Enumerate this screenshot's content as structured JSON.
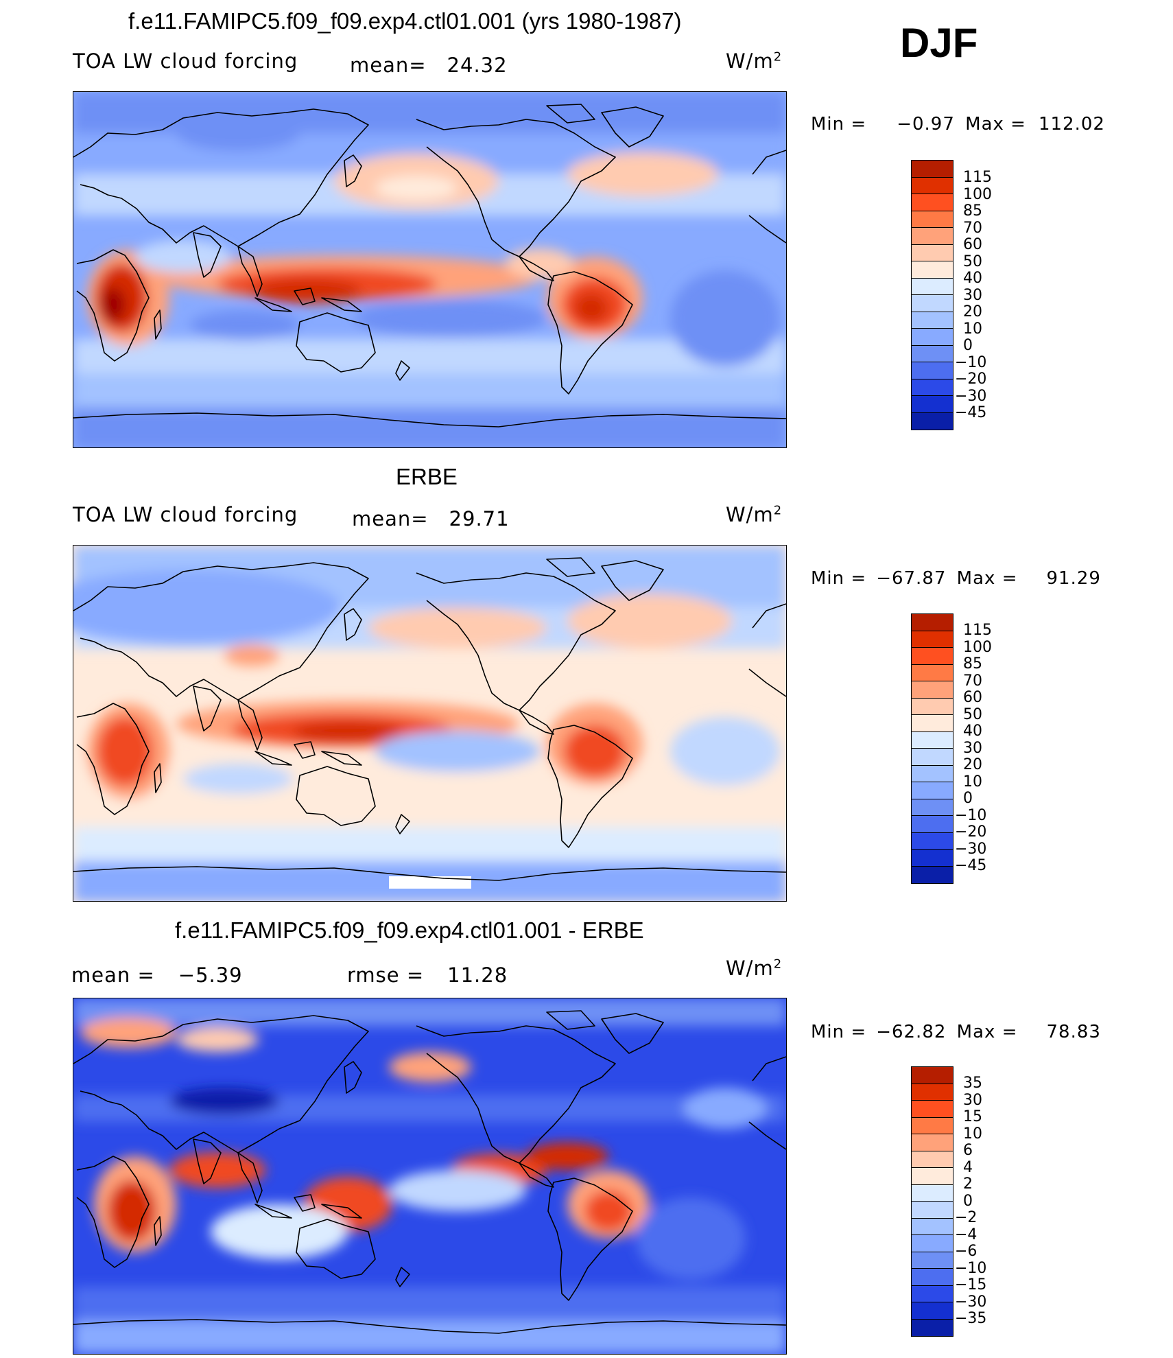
{
  "season": "DJF",
  "units": "W/m",
  "units_sup": "2",
  "palette": {
    "fields": [
      "#7f0000",
      "#b51e00",
      "#e03000",
      "#ff5020",
      "#ff7a45",
      "#ffa27a",
      "#ffcbb0",
      "#ffebdc",
      "#dcecff",
      "#c1d8ff",
      "#a3c2ff",
      "#88aaff",
      "#6e90f5",
      "#4d6ef0",
      "#2c4ae8",
      "#1430d0",
      "#0a1fa8",
      "#06117a"
    ]
  },
  "panels": [
    {
      "title": "f.e11.FAMIPC5.f09_f09.exp4.ctl01.001 (yrs 1980-1987)",
      "field_label": "TOA LW cloud forcing",
      "stat1_label": "mean=",
      "stat1_value": "24.32",
      "min_label": "Min =",
      "min_value": "−0.97",
      "max_label": "Max =",
      "max_value": "112.02",
      "levels": [
        "115",
        "100",
        "85",
        "70",
        "60",
        "50",
        "40",
        "30",
        "20",
        "10",
        "0",
        "−10",
        "−20",
        "−30",
        "−45"
      ],
      "kind": "model"
    },
    {
      "title": "ERBE",
      "field_label": "TOA LW cloud forcing",
      "stat1_label": "mean=",
      "stat1_value": "29.71",
      "min_label": "Min =",
      "min_value": "−67.87",
      "max_label": "Max =",
      "max_value": "91.29",
      "levels": [
        "115",
        "100",
        "85",
        "70",
        "60",
        "50",
        "40",
        "30",
        "20",
        "10",
        "0",
        "−10",
        "−20",
        "−30",
        "−45"
      ],
      "kind": "obs"
    },
    {
      "title": "f.e11.FAMIPC5.f09_f09.exp4.ctl01.001 - ERBE",
      "stat1_label": "mean =",
      "stat1_value": "−5.39",
      "stat2_label": "rmse =",
      "stat2_value": "11.28",
      "min_label": "Min =",
      "min_value": "−62.82",
      "max_label": "Max =",
      "max_value": "78.83",
      "levels": [
        "35",
        "30",
        "15",
        "10",
        "6",
        "4",
        "2",
        "0",
        "−2",
        "−4",
        "−6",
        "−10",
        "−15",
        "−30",
        "−35"
      ],
      "kind": "diff"
    }
  ]
}
